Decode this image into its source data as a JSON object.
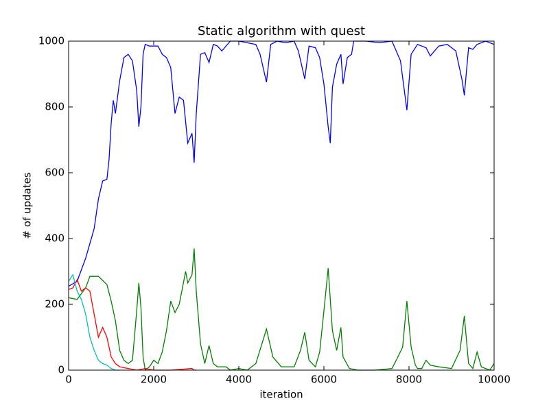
{
  "chart_data": {
    "type": "line",
    "title": "Static algorithm with quest",
    "xlabel": "iteration",
    "ylabel": "# of updates",
    "xlim": [
      0,
      10000
    ],
    "ylim": [
      0,
      1000
    ],
    "xticks": [
      0,
      2000,
      4000,
      6000,
      8000,
      10000
    ],
    "yticks": [
      0,
      200,
      400,
      600,
      800,
      1000
    ],
    "grid": false,
    "series": [
      {
        "color": "#0000ff",
        "x": [
          0,
          200,
          400,
          600,
          700,
          800,
          900,
          950,
          1000,
          1050,
          1100,
          1200,
          1300,
          1400,
          1500,
          1600,
          1650,
          1700,
          1750,
          1800,
          1900,
          2000,
          2100,
          2200,
          2300,
          2400,
          2500,
          2600,
          2700,
          2800,
          2900,
          2950,
          3000,
          3100,
          3200,
          3300,
          3400,
          3500,
          3600,
          3800,
          4000,
          4200,
          4400,
          4500,
          4650,
          4750,
          4900,
          5100,
          5300,
          5400,
          5550,
          5650,
          5800,
          5900,
          6000,
          6100,
          6150,
          6200,
          6300,
          6400,
          6450,
          6550,
          6650,
          6700,
          7000,
          7300,
          7600,
          7800,
          7950,
          8050,
          8200,
          8400,
          8500,
          8700,
          8900,
          9100,
          9250,
          9300,
          9400,
          9500,
          9600,
          9800,
          10000
        ],
        "values": [
          255,
          270,
          340,
          430,
          520,
          575,
          580,
          640,
          750,
          820,
          780,
          880,
          950,
          960,
          940,
          850,
          740,
          800,
          960,
          990,
          985,
          985,
          985,
          960,
          950,
          920,
          780,
          830,
          820,
          690,
          720,
          630,
          780,
          960,
          965,
          935,
          990,
          985,
          970,
          1000,
          1000,
          995,
          990,
          960,
          875,
          990,
          1000,
          995,
          1000,
          970,
          885,
          985,
          980,
          950,
          870,
          740,
          690,
          860,
          930,
          960,
          870,
          950,
          960,
          1000,
          1000,
          995,
          1000,
          940,
          790,
          960,
          990,
          980,
          955,
          985,
          990,
          970,
          880,
          835,
          980,
          975,
          990,
          1000,
          990
        ]
      },
      {
        "color": "#008000",
        "x": [
          0,
          200,
          400,
          500,
          700,
          900,
          1000,
          1100,
          1200,
          1300,
          1400,
          1500,
          1600,
          1650,
          1700,
          1750,
          1800,
          1900,
          2000,
          2100,
          2200,
          2300,
          2400,
          2500,
          2600,
          2750,
          2800,
          2900,
          2950,
          3000,
          3100,
          3200,
          3300,
          3400,
          3500,
          3700,
          3800,
          4000,
          4200,
          4400,
          4650,
          4800,
          5000,
          5300,
          5450,
          5550,
          5650,
          5800,
          5900,
          6000,
          6100,
          6200,
          6300,
          6400,
          6450,
          6600,
          6800,
          7200,
          7600,
          7700,
          7850,
          7950,
          8050,
          8150,
          8200,
          8300,
          8400,
          8500,
          8700,
          9000,
          9200,
          9300,
          9400,
          9500,
          9600,
          9700,
          9900,
          10000
        ],
        "values": [
          220,
          215,
          250,
          285,
          285,
          260,
          210,
          150,
          60,
          30,
          20,
          30,
          180,
          265,
          190,
          40,
          0,
          10,
          30,
          20,
          55,
          120,
          210,
          175,
          200,
          300,
          265,
          290,
          370,
          240,
          80,
          20,
          75,
          20,
          10,
          10,
          0,
          5,
          0,
          20,
          125,
          40,
          10,
          10,
          60,
          115,
          30,
          10,
          55,
          180,
          310,
          120,
          60,
          130,
          40,
          5,
          0,
          0,
          5,
          30,
          70,
          210,
          70,
          15,
          5,
          5,
          30,
          15,
          10,
          5,
          60,
          165,
          20,
          5,
          55,
          10,
          0,
          20
        ]
      },
      {
        "color": "#ff0000",
        "x": [
          0,
          100,
          200,
          300,
          400,
          500,
          600,
          700,
          800,
          900,
          1000,
          1100,
          1200,
          1400,
          1600,
          1800,
          2000,
          2400,
          2900,
          2950,
          3000
        ],
        "values": [
          245,
          250,
          275,
          240,
          250,
          240,
          170,
          100,
          130,
          100,
          40,
          20,
          10,
          5,
          0,
          5,
          0,
          0,
          5,
          0,
          0
        ]
      },
      {
        "color": "#00bfbf",
        "x": [
          0,
          100,
          200,
          300,
          400,
          500,
          600,
          700,
          800,
          900,
          1000,
          1100,
          1200
        ],
        "values": [
          270,
          290,
          240,
          215,
          170,
          100,
          60,
          30,
          20,
          15,
          5,
          0,
          0
        ]
      }
    ]
  }
}
